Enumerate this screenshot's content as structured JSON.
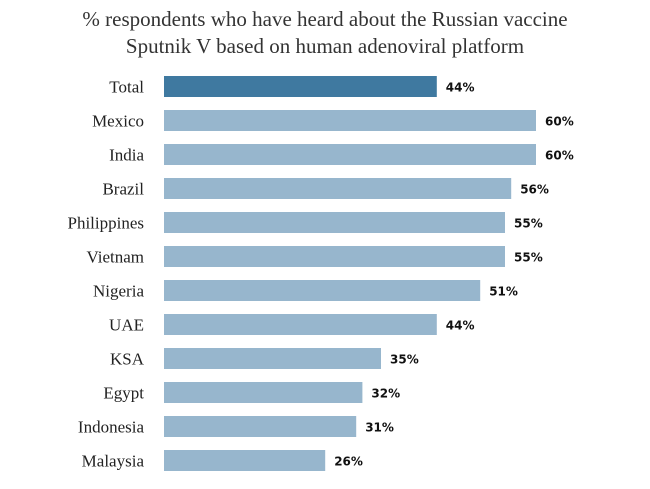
{
  "chart_data": {
    "type": "bar",
    "orientation": "horizontal",
    "title": "% respondents who have heard about the Russian vaccine Sputnik V based on human adenoviral platform",
    "title_lines": [
      "% respondents who have heard about the Russian vaccine",
      "Sputnik V based on human adenoviral  platform"
    ],
    "categories": [
      "Total",
      "Mexico",
      "India",
      "Brazil",
      "Philippines",
      "Vietnam",
      "Nigeria",
      "UAE",
      "KSA",
      "Egypt",
      "Indonesia",
      "Malaysia"
    ],
    "values": [
      44,
      60,
      60,
      56,
      55,
      55,
      51,
      44,
      35,
      32,
      31,
      26
    ],
    "value_labels": [
      "44%",
      "60%",
      "60%",
      "56%",
      "55%",
      "55%",
      "51%",
      "44%",
      "35%",
      "32%",
      "31%",
      "26%"
    ],
    "highlight_category": "Total",
    "colors": {
      "highlight": "#3f79a0",
      "bar": "#97b6cd"
    },
    "xlim": [
      0,
      60
    ],
    "grid": false,
    "legend": "none"
  }
}
